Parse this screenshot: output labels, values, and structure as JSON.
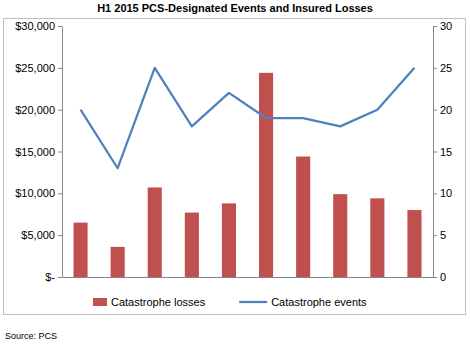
{
  "chart_data": {
    "type": "bar",
    "title": "H1 2015 PCS-Designated Events and Insured Losses",
    "source": "Source: PCS",
    "categories": [
      null,
      null,
      null,
      null,
      null,
      null,
      null,
      null,
      null,
      null
    ],
    "series": [
      {
        "name": "Catastrophe losses",
        "type": "bar",
        "color": "#c0504d",
        "values": [
          6500,
          3600,
          10700,
          7700,
          8800,
          24400,
          14400,
          9900,
          9400,
          8000
        ]
      },
      {
        "name": "Catastrophe events",
        "type": "line",
        "axis": "y2",
        "color": "#4f81bd",
        "values": [
          20,
          13,
          25,
          18,
          22,
          19,
          19,
          18,
          20,
          25
        ]
      }
    ],
    "ylim": [
      0,
      30000
    ],
    "yticks": [
      {
        "value": 0,
        "label": "$-"
      },
      {
        "value": 5000,
        "label": "$5,000"
      },
      {
        "value": 10000,
        "label": "$10,000"
      },
      {
        "value": 15000,
        "label": "$15,000"
      },
      {
        "value": 20000,
        "label": "$20,000"
      },
      {
        "value": 25000,
        "label": "$25,000"
      },
      {
        "value": 30000,
        "label": "$30,000"
      }
    ],
    "y2lim": [
      0,
      30
    ],
    "y2ticks": [
      0,
      5,
      10,
      15,
      20,
      25,
      30
    ],
    "grid": false,
    "legend": "bottom"
  }
}
